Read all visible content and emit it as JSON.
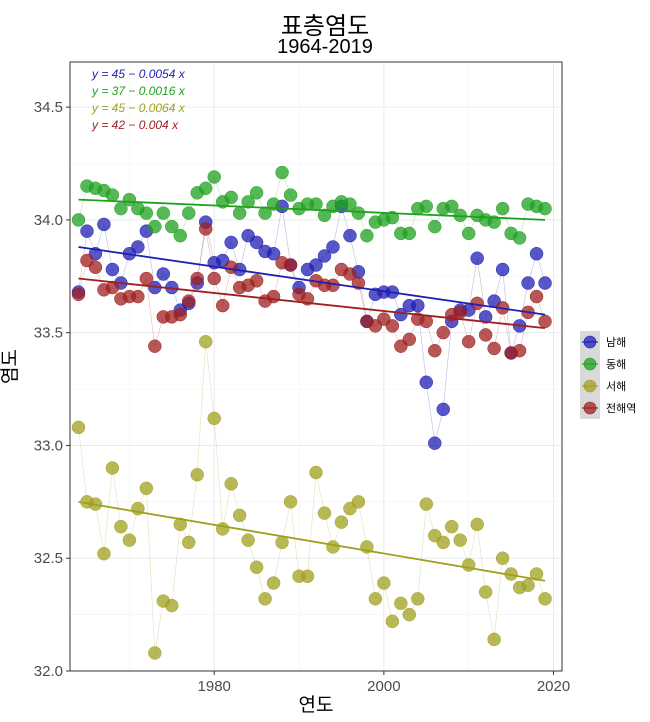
{
  "title": "표층염도",
  "subtitle": "1964-2019",
  "chart_data": {
    "type": "scatter",
    "xlabel": "연도",
    "ylabel": "염도",
    "xlim": [
      1963,
      2021
    ],
    "ylim": [
      32.0,
      34.7
    ],
    "xticks": [
      1980,
      2000,
      2020
    ],
    "yticks": [
      32.0,
      32.5,
      33.0,
      33.5,
      34.0,
      34.5
    ],
    "xtick_labels": [
      "1980",
      "2000",
      "2020"
    ],
    "ytick_labels": [
      "32.0",
      "32.5",
      "33.0",
      "33.5",
      "34.0",
      "34.5"
    ],
    "grid": true,
    "legend_position": "right",
    "x": [
      1964,
      1965,
      1966,
      1967,
      1968,
      1969,
      1970,
      1971,
      1972,
      1973,
      1974,
      1975,
      1976,
      1977,
      1978,
      1979,
      1980,
      1981,
      1982,
      1983,
      1984,
      1985,
      1986,
      1987,
      1988,
      1989,
      1990,
      1991,
      1992,
      1993,
      1994,
      1995,
      1996,
      1997,
      1998,
      1999,
      2000,
      2001,
      2002,
      2003,
      2004,
      2005,
      2006,
      2007,
      2008,
      2009,
      2010,
      2011,
      2012,
      2013,
      2014,
      2015,
      2016,
      2017,
      2018,
      2019
    ],
    "series": [
      {
        "name": "남해",
        "color": "#1f1fb4",
        "equation": "y = 45 − 0.0054 x",
        "trend": [
          33.88,
          33.58
        ],
        "values": [
          33.68,
          33.95,
          33.85,
          33.98,
          33.78,
          33.72,
          33.85,
          33.88,
          33.95,
          33.7,
          33.76,
          33.7,
          33.6,
          33.63,
          33.72,
          33.99,
          33.81,
          33.82,
          33.9,
          33.78,
          33.93,
          33.9,
          33.86,
          33.85,
          34.06,
          33.8,
          33.7,
          33.78,
          33.8,
          33.84,
          33.88,
          34.06,
          33.93,
          33.77,
          33.55,
          33.67,
          33.68,
          33.68,
          33.58,
          33.62,
          33.62,
          33.28,
          33.01,
          33.16,
          33.55,
          33.6,
          33.6,
          33.83,
          33.57,
          33.64,
          33.78,
          33.41,
          33.53,
          33.72,
          33.85,
          33.72
        ]
      },
      {
        "name": "동해",
        "color": "#1fa01f",
        "equation": "y = 37 − 0.0016 x",
        "trend": [
          34.09,
          34.0
        ],
        "values": [
          34.0,
          34.15,
          34.14,
          34.13,
          34.11,
          34.05,
          34.09,
          34.05,
          34.03,
          33.97,
          34.03,
          33.97,
          33.93,
          34.03,
          34.12,
          34.14,
          34.19,
          34.08,
          34.1,
          34.03,
          34.08,
          34.12,
          34.03,
          34.07,
          34.21,
          34.11,
          34.05,
          34.07,
          34.07,
          34.02,
          34.06,
          34.08,
          34.07,
          34.03,
          33.93,
          33.99,
          34.0,
          34.01,
          33.94,
          33.94,
          34.05,
          34.06,
          33.97,
          34.05,
          34.06,
          34.02,
          33.94,
          34.02,
          34.0,
          33.99,
          34.05,
          33.94,
          33.92,
          34.07,
          34.06,
          34.05
        ]
      },
      {
        "name": "서해",
        "color": "#a0a01f",
        "equation": "y = 45 − 0.0064 x",
        "trend": [
          32.75,
          32.4
        ],
        "values": [
          33.08,
          32.75,
          32.74,
          32.52,
          32.9,
          32.64,
          32.58,
          32.72,
          32.81,
          32.08,
          32.31,
          32.29,
          32.65,
          32.57,
          32.87,
          33.46,
          33.12,
          32.63,
          32.83,
          32.69,
          32.58,
          32.46,
          32.32,
          32.39,
          32.57,
          32.75,
          32.42,
          32.42,
          32.88,
          32.7,
          32.55,
          32.66,
          32.72,
          32.75,
          32.55,
          32.32,
          32.39,
          32.22,
          32.3,
          32.25,
          32.32,
          32.74,
          32.6,
          32.57,
          32.64,
          32.58,
          32.47,
          32.65,
          32.35,
          32.14,
          32.5,
          32.43,
          32.37,
          32.38,
          32.43,
          32.32
        ]
      },
      {
        "name": "전해역",
        "color": "#a01f1f",
        "equation": "y = 42 − 0.004 x",
        "trend": [
          33.74,
          33.52
        ],
        "values": [
          33.67,
          33.82,
          33.79,
          33.69,
          33.7,
          33.65,
          33.66,
          33.66,
          33.74,
          33.44,
          33.57,
          33.57,
          33.58,
          33.64,
          33.74,
          33.96,
          33.74,
          33.62,
          33.79,
          33.7,
          33.71,
          33.73,
          33.64,
          33.66,
          33.81,
          33.8,
          33.67,
          33.65,
          33.73,
          33.71,
          33.71,
          33.78,
          33.76,
          33.72,
          33.55,
          33.53,
          33.56,
          33.53,
          33.44,
          33.47,
          33.56,
          33.55,
          33.42,
          33.5,
          33.58,
          33.59,
          33.46,
          33.63,
          33.49,
          33.43,
          33.61,
          33.41,
          33.42,
          33.59,
          33.66,
          33.55
        ]
      }
    ]
  }
}
